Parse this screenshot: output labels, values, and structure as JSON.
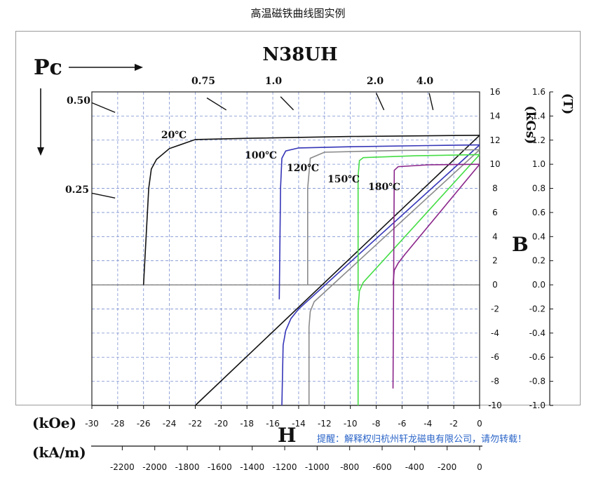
{
  "page": {
    "title": "高温磁铁曲线图实例",
    "notice": "提醒：解释权归杭州轩龙磁电有限公司，请勿转载！"
  },
  "colors": {
    "c20": "#111111",
    "c100": "#3535b8",
    "c120": "#8a8a8a",
    "c150": "#44dd44",
    "c180": "#8a258a",
    "grid": "#7a8fd0"
  },
  "chart_data": {
    "type": "line",
    "title": "N38UH",
    "pc_label": "Pc",
    "pc_marks": [
      "0.50",
      "0.75",
      "1.0",
      "2.0",
      "4.0",
      "0.25"
    ],
    "xlabel_koe": "(kOe)",
    "xlabel_kam": "(kA/m)",
    "xlabel_main": "H",
    "ylabel_b": "B",
    "ylabel_kgs": "(kGs)",
    "ylabel_t": "(T)",
    "x_koe_ticks": [
      "-30",
      "-28",
      "-26",
      "-24",
      "-22",
      "-20",
      "-18",
      "-16",
      "-14",
      "-12",
      "-10",
      "-8",
      "-6",
      "-4",
      "-2",
      "0"
    ],
    "x_kam_ticks": [
      "-2200",
      "-2000",
      "-1800",
      "-1600",
      "-1400",
      "-1200",
      "-1000",
      "-800",
      "-600",
      "-400",
      "-200",
      "0"
    ],
    "y_kgs_ticks": [
      "16",
      "14",
      "12",
      "10",
      "8",
      "6",
      "4",
      "2",
      "0",
      "-2",
      "-4",
      "-6",
      "-8",
      "-10"
    ],
    "y_t_ticks": [
      "1.6",
      "1.4",
      "1.2",
      "1.0",
      "0.8",
      "0.6",
      "0.4",
      "0.2",
      "0.0",
      "-0.2",
      "-0.4",
      "-0.6",
      "-0.8",
      "-1.0"
    ],
    "xlim": [
      -30,
      0
    ],
    "ylim": [
      -10,
      16
    ],
    "grid": true,
    "series": [
      {
        "name": "20℃",
        "label": "20℃",
        "color_key": "c20",
        "demag": [
          [
            0,
            12.4
          ],
          [
            -2,
            12.38
          ],
          [
            -10,
            12.3
          ],
          [
            -18,
            12.15
          ],
          [
            -22,
            12.05
          ],
          [
            -24,
            11.3
          ],
          [
            -25,
            10.4
          ],
          [
            -25.4,
            9.6
          ],
          [
            -25.6,
            8
          ],
          [
            -25.8,
            4
          ],
          [
            -26,
            0
          ]
        ],
        "recoil": [
          [
            0,
            12.4
          ],
          [
            -22,
            -10
          ]
        ]
      },
      {
        "name": "100℃",
        "label": "100℃",
        "color_key": "c100",
        "demag": [
          [
            0,
            11.6
          ],
          [
            -4,
            11.55
          ],
          [
            -10,
            11.45
          ],
          [
            -14,
            11.35
          ],
          [
            -15,
            11.1
          ],
          [
            -15.3,
            10.5
          ],
          [
            -15.4,
            8
          ],
          [
            -15.5,
            -1.2
          ]
        ],
        "recoil": [
          [
            0,
            11.6
          ],
          [
            -14,
            -2
          ],
          [
            -14.6,
            -2.8
          ],
          [
            -15,
            -3.8
          ],
          [
            -15.2,
            -5
          ],
          [
            -15.3,
            -10
          ]
        ]
      },
      {
        "name": "120℃",
        "label": "120℃",
        "color_key": "c120",
        "demag": [
          [
            0,
            11.2
          ],
          [
            -6,
            11.15
          ],
          [
            -12,
            11.0
          ],
          [
            -13.1,
            10.5
          ],
          [
            -13.3,
            8
          ],
          [
            -13.3,
            0
          ]
        ],
        "recoil": [
          [
            0,
            11.2
          ],
          [
            -12.8,
            -1.4
          ],
          [
            -13.1,
            -2.2
          ],
          [
            -13.2,
            -3.5
          ],
          [
            -13.2,
            -10
          ]
        ]
      },
      {
        "name": "150℃",
        "label": "150℃",
        "color_key": "c150",
        "demag": [
          [
            0,
            10.8
          ],
          [
            -5,
            10.7
          ],
          [
            -9,
            10.55
          ],
          [
            -9.3,
            10.3
          ],
          [
            -9.4,
            9
          ],
          [
            -9.4,
            -0.5
          ]
        ],
        "recoil": [
          [
            0,
            10.8
          ],
          [
            -9,
            0.2
          ],
          [
            -9.3,
            -0.5
          ],
          [
            -9.4,
            -2
          ],
          [
            -9.4,
            -10
          ]
        ]
      },
      {
        "name": "180℃",
        "label": "180℃",
        "color_key": "c180",
        "demag": [
          [
            0,
            10.0
          ],
          [
            -4,
            9.95
          ],
          [
            -6.3,
            9.8
          ],
          [
            -6.6,
            9.5
          ],
          [
            -6.7,
            -8.6
          ]
        ],
        "recoil": [
          [
            0,
            10.0
          ],
          [
            -5.8,
            2.5
          ],
          [
            -6.3,
            1.8
          ],
          [
            -6.6,
            1.2
          ],
          [
            -6.7,
            0
          ]
        ]
      }
    ],
    "pc_lines": [
      {
        "label": "0.50",
        "x": -30,
        "y": 15.1
      },
      {
        "label": "0.25",
        "x": -30,
        "y": 7.5
      },
      {
        "label": "0.75",
        "x": -20.6,
        "y": 16
      },
      {
        "label": "1.0",
        "x": -14.4,
        "y": 16
      },
      {
        "label": "2.0",
        "x": -7.8,
        "y": 16
      },
      {
        "label": "4.0",
        "x": -3.6,
        "y": 16
      }
    ]
  }
}
